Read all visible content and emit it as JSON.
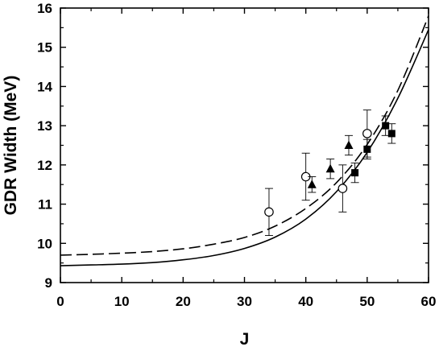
{
  "chart_data": {
    "type": "scatter",
    "xlabel": "J",
    "ylabel": "GDR Width (MeV)",
    "xlim": [
      0,
      60
    ],
    "ylim": [
      9,
      16
    ],
    "x_ticks": [
      0,
      10,
      20,
      30,
      40,
      50,
      60
    ],
    "y_ticks": [
      9,
      10,
      11,
      12,
      13,
      14,
      15,
      16
    ],
    "grid": false,
    "legend": "none",
    "series": [
      {
        "kind": "line",
        "style": "solid",
        "x": [
          0,
          5,
          10,
          15,
          20,
          25,
          30,
          35,
          40,
          45,
          50,
          55,
          60
        ],
        "y": [
          9.43,
          9.45,
          9.47,
          9.51,
          9.58,
          9.69,
          9.87,
          10.16,
          10.62,
          11.32,
          12.32,
          13.7,
          15.45
        ]
      },
      {
        "kind": "line",
        "style": "dashed",
        "x": [
          0,
          5,
          10,
          15,
          20,
          25,
          30,
          35,
          40,
          45,
          50,
          55,
          60
        ],
        "y": [
          9.7,
          9.72,
          9.75,
          9.79,
          9.86,
          9.98,
          10.15,
          10.44,
          10.89,
          11.55,
          12.52,
          13.9,
          15.8
        ]
      },
      {
        "kind": "points",
        "marker": "open-circle",
        "x": [
          34,
          40,
          46,
          50
        ],
        "y": [
          10.8,
          11.7,
          11.4,
          12.8
        ],
        "err": [
          0.6,
          0.6,
          0.6,
          0.6
        ]
      },
      {
        "kind": "points",
        "marker": "filled-triangle",
        "x": [
          41,
          44,
          47
        ],
        "y": [
          11.5,
          11.9,
          12.5
        ],
        "err": [
          0.2,
          0.25,
          0.25
        ]
      },
      {
        "kind": "points",
        "marker": "filled-square",
        "x": [
          48,
          50,
          53,
          54
        ],
        "y": [
          11.8,
          12.4,
          13.0,
          12.8
        ],
        "err": [
          0.25,
          0.25,
          0.25,
          0.25
        ]
      }
    ]
  }
}
